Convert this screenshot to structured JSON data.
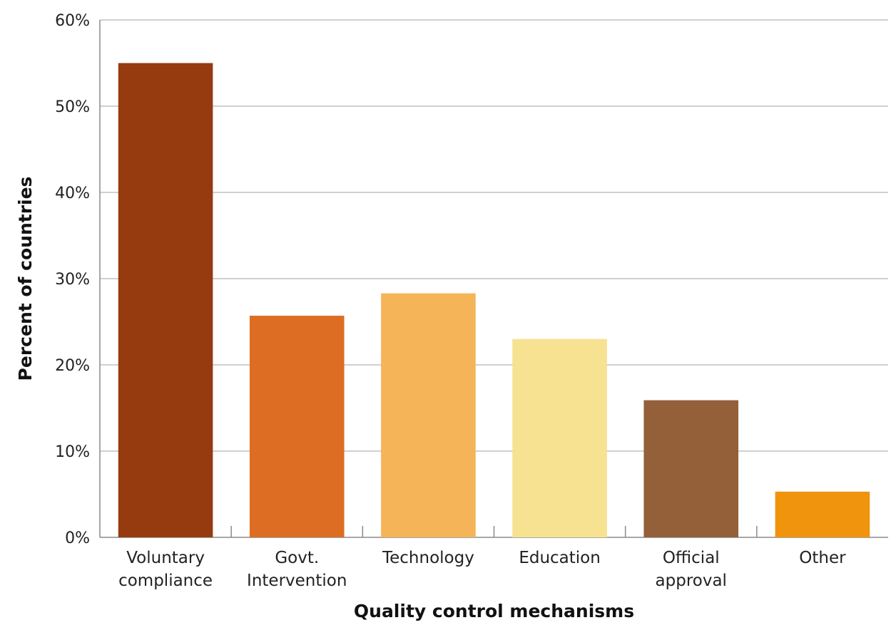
{
  "chart_data": {
    "type": "bar",
    "xlabel": "Quality control mechanisms",
    "ylabel": "Percent of countries",
    "ylim": [
      0,
      60
    ],
    "yticks": [
      0,
      10,
      20,
      30,
      40,
      50,
      60
    ],
    "ytick_labels": [
      "0%",
      "10%",
      "20%",
      "30%",
      "40%",
      "50%",
      "60%"
    ],
    "grid": true,
    "categories": [
      {
        "lines": [
          "Voluntary",
          "compliance"
        ],
        "value": 55,
        "color": "#963b10"
      },
      {
        "lines": [
          "Govt.",
          "Intervention"
        ],
        "value": 25.7,
        "color": "#dd6d22"
      },
      {
        "lines": [
          "Technology"
        ],
        "value": 28.3,
        "color": "#f5b457"
      },
      {
        "lines": [
          "Education"
        ],
        "value": 23,
        "color": "#f6e291"
      },
      {
        "lines": [
          "Official",
          "approval"
        ],
        "value": 15.9,
        "color": "#93603a"
      },
      {
        "lines": [
          "Other"
        ],
        "value": 5.3,
        "color": "#f0940d"
      }
    ]
  }
}
